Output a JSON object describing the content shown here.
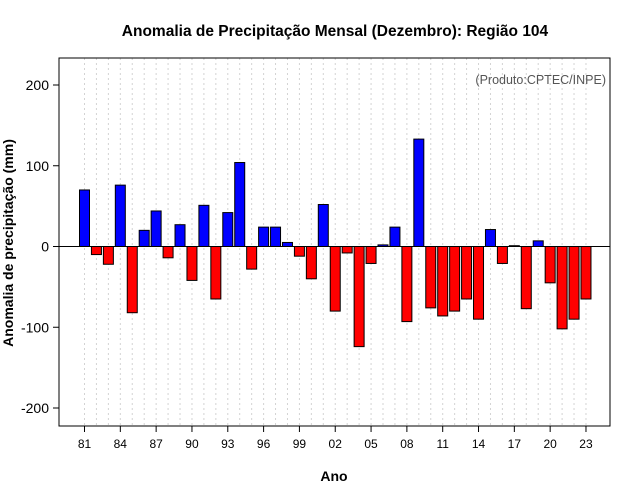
{
  "chart_data": {
    "type": "bar",
    "title": "Anomalia de Precipitação Mensal (Dezembro): Região 104",
    "xlabel": "Ano",
    "ylabel": "Anomalia de precipitação (mm)",
    "credit": "(Produto:CPTEC/INPE)",
    "ylim": [
      -200,
      200
    ],
    "yticks": [
      200,
      100,
      0,
      -100,
      -200
    ],
    "grid": "vertical-dashed",
    "positive_color": "#0000ff",
    "negative_color": "#ff0000",
    "categories": [
      "81",
      "82",
      "83",
      "84",
      "85",
      "86",
      "87",
      "88",
      "89",
      "90",
      "91",
      "92",
      "93",
      "94",
      "95",
      "96",
      "97",
      "98",
      "99",
      "00",
      "01",
      "02",
      "03",
      "04",
      "05",
      "06",
      "07",
      "08",
      "09",
      "10",
      "11",
      "12",
      "13",
      "14",
      "15",
      "16",
      "17",
      "18",
      "19",
      "20",
      "21",
      "22",
      "23"
    ],
    "values": [
      70,
      -10,
      -22,
      76,
      -82,
      20,
      44,
      -14,
      27,
      -42,
      51,
      -65,
      42,
      104,
      -28,
      24,
      24,
      5,
      -12,
      -40,
      52,
      -80,
      -8,
      -124,
      -21,
      2,
      24,
      -93,
      133,
      -76,
      -86,
      -80,
      -65,
      -90,
      21,
      -21,
      1,
      -77,
      7,
      -45,
      -102,
      -90,
      -65
    ],
    "xtick_labels": [
      "81",
      "84",
      "87",
      "90",
      "93",
      "96",
      "99",
      "02",
      "05",
      "08",
      "11",
      "14",
      "17",
      "20",
      "23"
    ]
  }
}
